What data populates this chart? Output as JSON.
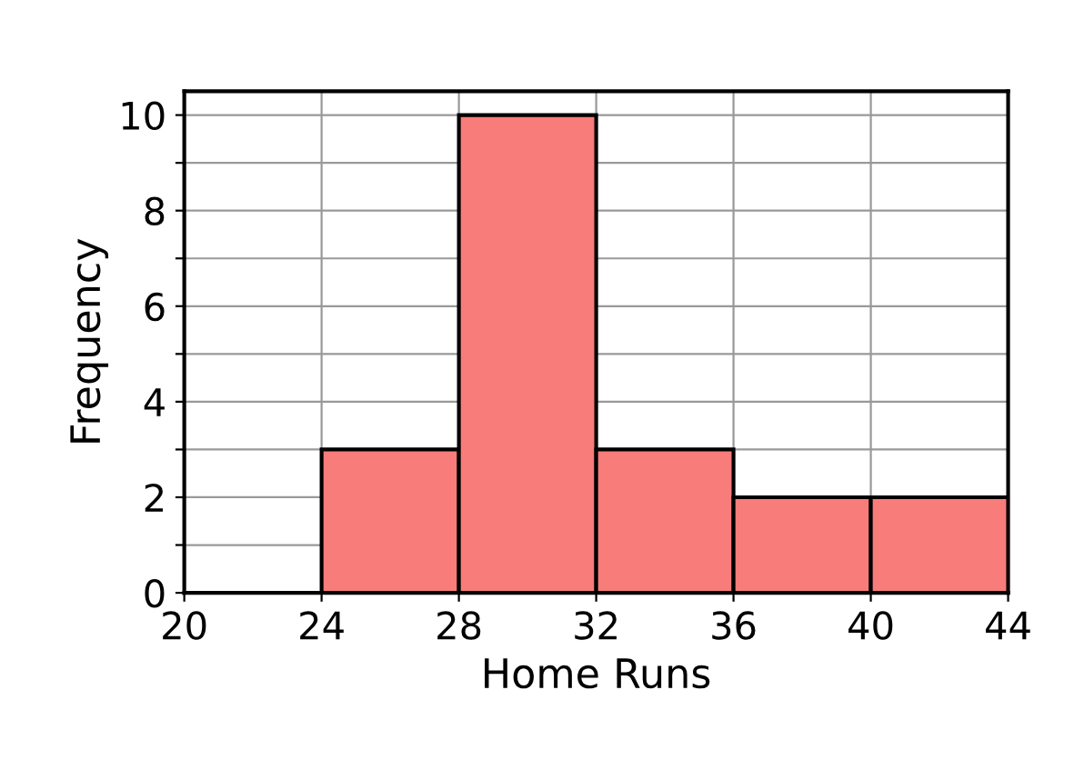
{
  "chart_data": {
    "type": "histogram",
    "xlabel": "Home Runs",
    "ylabel": "Frequency",
    "bins": [
      20,
      24,
      28,
      32,
      36,
      40,
      44
    ],
    "values": [
      0,
      3,
      10,
      3,
      2,
      2
    ],
    "color": "#f87c7a",
    "xlim": [
      20,
      44
    ],
    "xticks": [
      20,
      24,
      28,
      32,
      36,
      40,
      44
    ],
    "ylim": [
      0,
      10.5
    ],
    "yticks": [
      0,
      {
        "value": 1,
        "label": null
      },
      2,
      {
        "value": 3,
        "label": null
      },
      4,
      {
        "value": 5,
        "label": null
      },
      6,
      {
        "value": 7,
        "label": null
      },
      8,
      {
        "value": 9,
        "label": null
      },
      10
    ],
    "grid": true
  }
}
